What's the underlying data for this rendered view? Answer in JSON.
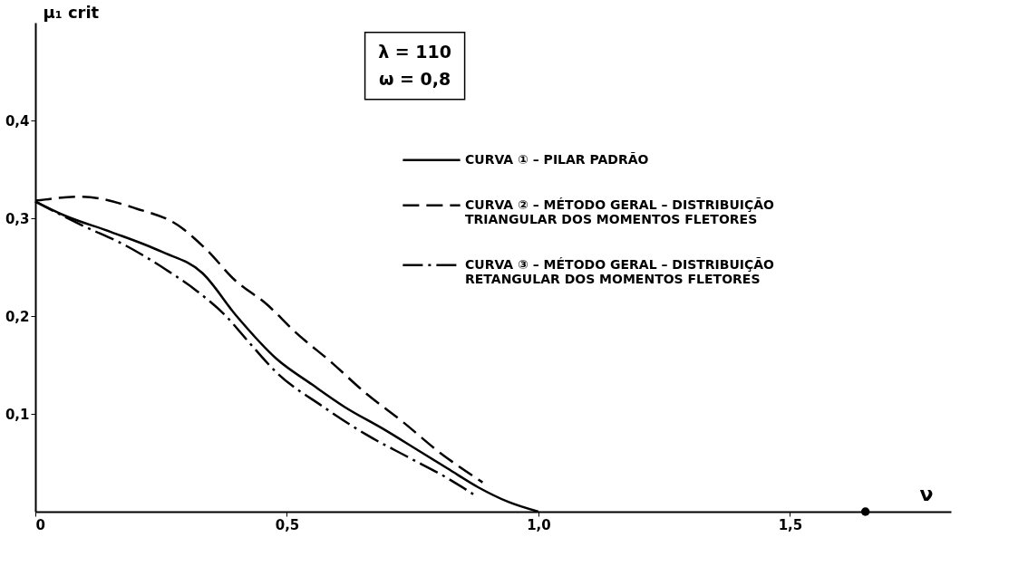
{
  "chart_data": {
    "type": "line",
    "xlabel": "ν",
    "ylabel": "μ₁ crit",
    "xlim": [
      0,
      1.82
    ],
    "ylim": [
      0,
      0.5
    ],
    "xticks": [
      {
        "value": 0,
        "label": "0"
      },
      {
        "value": 0.5,
        "label": "0,5"
      },
      {
        "value": 1.0,
        "label": "1,0"
      },
      {
        "value": 1.5,
        "label": "1,5"
      }
    ],
    "yticks": [
      {
        "value": 0.1,
        "label": "0,1"
      },
      {
        "value": 0.2,
        "label": "0,2"
      },
      {
        "value": 0.3,
        "label": "0,3"
      },
      {
        "value": 0.4,
        "label": "0,4"
      }
    ],
    "grid": false,
    "legend": "top right",
    "marker": "none",
    "annotations": [
      "λ = 110",
      "ω = 0,8"
    ],
    "series": [
      {
        "name": "CURVA ① – PILAR PADRÃO",
        "color": "#000000",
        "line_style": "solid",
        "x": [
          0,
          0.057,
          0.15,
          0.25,
          0.332,
          0.4,
          0.48,
          0.55,
          0.615,
          0.69,
          0.763,
          0.82,
          0.88,
          0.94,
          1.0
        ],
        "values": [
          0.317,
          0.303,
          0.286,
          0.266,
          0.244,
          0.2,
          0.156,
          0.13,
          0.107,
          0.085,
          0.062,
          0.044,
          0.025,
          0.01,
          0
        ]
      },
      {
        "name": "CURVA ② – MÉTODO GERAL – DISTRIBUIÇÃO\nTRIANGULAR DOS MOMENTOS FLETORES",
        "color": "#000000",
        "line_style": "dashed",
        "x": [
          0,
          0.092,
          0.2,
          0.283,
          0.34,
          0.396,
          0.46,
          0.516,
          0.59,
          0.657,
          0.73,
          0.8,
          0.889
        ],
        "values": [
          0.318,
          0.322,
          0.31,
          0.293,
          0.268,
          0.237,
          0.212,
          0.184,
          0.152,
          0.121,
          0.092,
          0.062,
          0.03
        ]
      },
      {
        "name": "CURVA ③ – MÉTODO GERAL – DISTRIBUIÇÃO\nRETANGULAR DOS MOMENTOS FLETORES",
        "color": "#000000",
        "line_style": "dashdot",
        "x": [
          0,
          0.092,
          0.18,
          0.261,
          0.32,
          0.375,
          0.43,
          0.48,
          0.57,
          0.657,
          0.74,
          0.82,
          0.873
        ],
        "values": [
          0.317,
          0.293,
          0.272,
          0.247,
          0.226,
          0.202,
          0.17,
          0.142,
          0.108,
          0.079,
          0.056,
          0.034,
          0.017
        ]
      },
      {
        "type": "scatter",
        "color": "#000000",
        "marker": "circle",
        "x": [
          1.65
        ],
        "values": [
          0
        ]
      }
    ]
  }
}
